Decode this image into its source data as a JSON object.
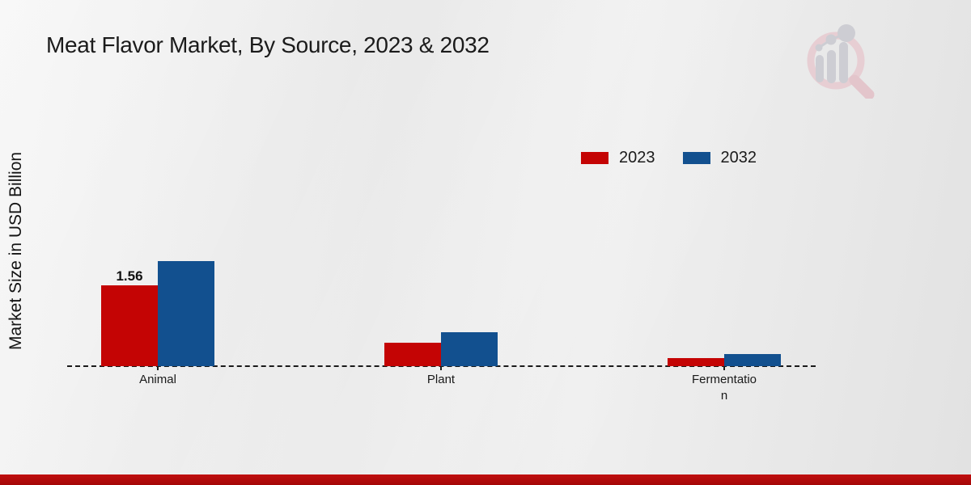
{
  "title": "Meat Flavor Market, By Source, 2023 & 2032",
  "y_axis_label": "Market Size in USD Billion",
  "legend": {
    "items": [
      {
        "label": "2023",
        "color": "#c40404"
      },
      {
        "label": "2032",
        "color": "#12508f"
      }
    ]
  },
  "colors": {
    "series_2023": "#c40404",
    "series_2032": "#12508f",
    "accent_bar": "#b30b0b",
    "baseline": "#1a1a1a"
  },
  "chart_data": {
    "type": "bar",
    "title": "Meat Flavor Market, By Source, 2023 & 2032",
    "ylabel": "Market Size in USD Billion",
    "xlabel": "",
    "categories": [
      "Animal",
      "Plant",
      "Fermentation"
    ],
    "series": [
      {
        "name": "2023",
        "color": "#c40404",
        "values": [
          1.56,
          0.45,
          0.16
        ]
      },
      {
        "name": "2032",
        "color": "#12508f",
        "values": [
          2.03,
          0.65,
          0.23
        ]
      }
    ],
    "data_labels": [
      {
        "series_index": 0,
        "category_index": 0,
        "text": "1.56"
      }
    ],
    "ylim": [
      0,
      2.2
    ],
    "grid": false,
    "legend_position": "top-right",
    "baseline_style": "dashed"
  }
}
